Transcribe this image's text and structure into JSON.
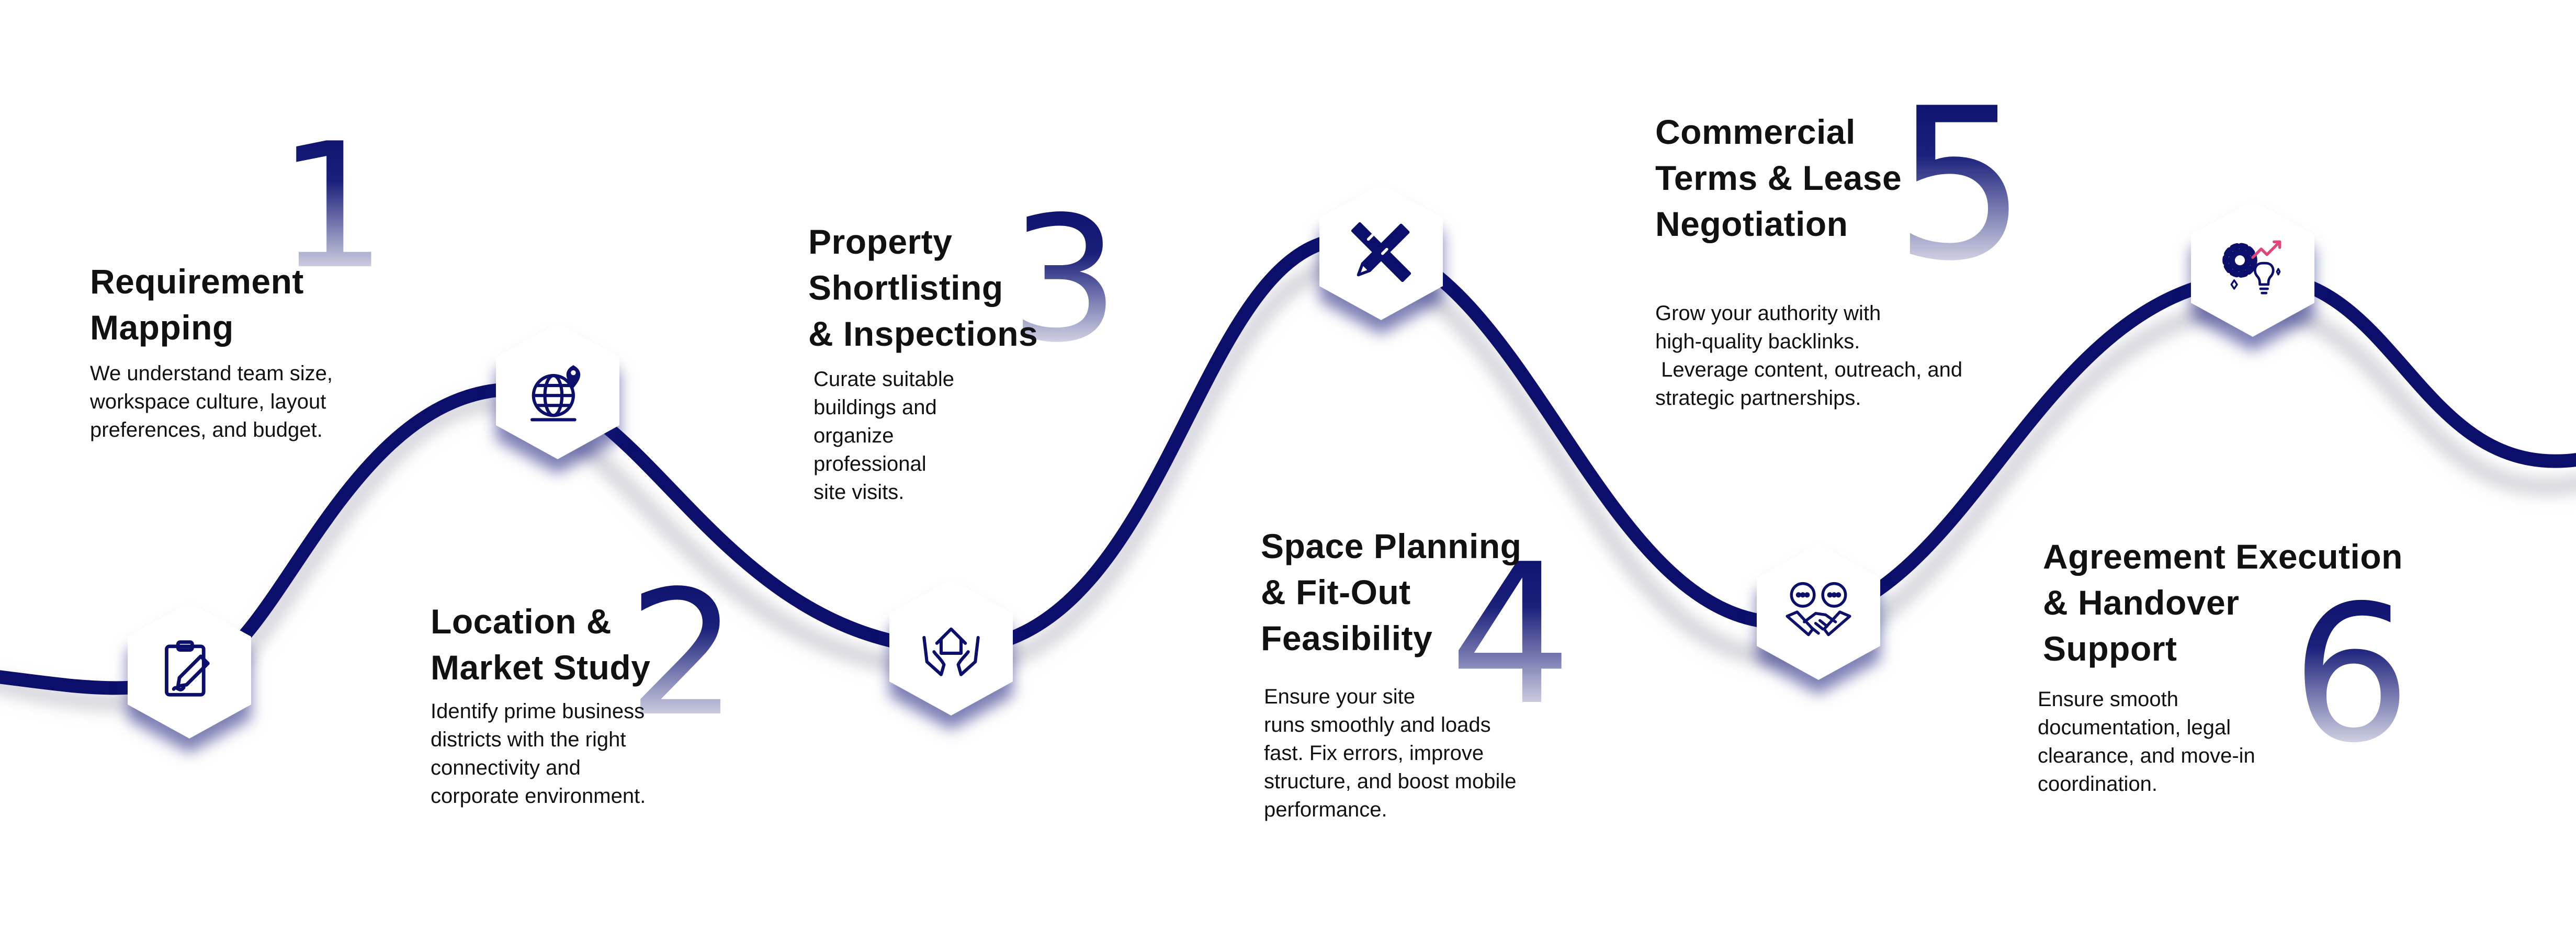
{
  "theme": {
    "accent": "#0b0f6b",
    "highlight": "#e0457b"
  },
  "steps": [
    {
      "number": "1",
      "title_lines": [
        "Requirement",
        "Mapping"
      ],
      "desc_lines": [
        "We understand team size,",
        "workspace culture, layout",
        "preferences, and budget."
      ],
      "icon": "clipboard-pen-icon"
    },
    {
      "number": "2",
      "title_lines": [
        "Location &",
        "Market Study"
      ],
      "desc_lines": [
        "Identify prime business",
        "districts with the right",
        "connectivity and",
        "corporate environment."
      ],
      "icon": "globe-pin-icon"
    },
    {
      "number": "3",
      "title_lines": [
        "Property",
        "Shortlisting",
        "& Inspections"
      ],
      "desc_lines": [
        "Curate suitable",
        "buildings and",
        "organize",
        "professional",
        "site visits."
      ],
      "icon": "house-hands-icon"
    },
    {
      "number": "4",
      "title_lines": [
        "Space Planning",
        "& Fit-Out",
        "Feasibility"
      ],
      "desc_lines": [
        "Ensure your site",
        "runs smoothly and loads",
        "fast. Fix errors, improve",
        "structure, and boost mobile",
        "performance."
      ],
      "icon": "pencil-ruler-icon"
    },
    {
      "number": "5",
      "title_lines": [
        "Commercial",
        "Terms & Lease",
        "Negotiation"
      ],
      "desc_lines": [
        "Grow your authority with",
        "high-quality backlinks.",
        " Leverage content, outreach, and",
        "strategic partnerships."
      ],
      "icon": "handshake-chat-icon"
    },
    {
      "number": "6",
      "title_lines": [
        "Agreement Execution",
        "& Handover",
        "Support"
      ],
      "desc_lines": [
        "Ensure smooth",
        "documentation, legal",
        "clearance, and move-in",
        "coordination."
      ],
      "icon": "gear-bulb-icon"
    }
  ]
}
